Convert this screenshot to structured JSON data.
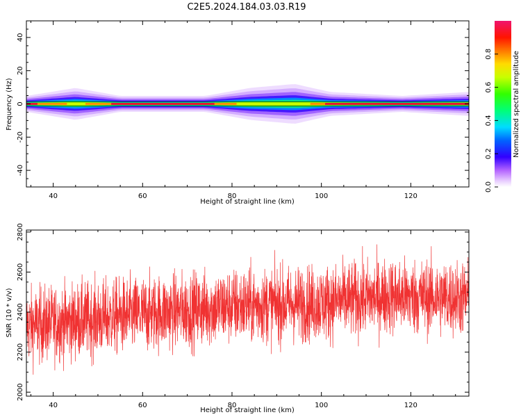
{
  "title": "C2E5.2024.184.03.03.R19",
  "chart_data": [
    {
      "type": "heatmap",
      "xlabel": "Height of straight line (km)",
      "ylabel": "Frequency (Hz)",
      "xlim": [
        34,
        133
      ],
      "ylim": [
        -50,
        50
      ],
      "xticks": [
        40,
        60,
        80,
        100,
        120
      ],
      "yticks": [
        -40,
        -20,
        0,
        20,
        40
      ],
      "colorbar": {
        "label": "Normalized spectral amplitude",
        "range": [
          0,
          1
        ],
        "ticks": [
          0.0,
          0.2,
          0.4,
          0.6,
          0.8
        ]
      },
      "spectral_band": {
        "center_hz": 0,
        "profile": [
          {
            "x": 34,
            "halfwidth_hz": 2,
            "core_level": 0.85
          },
          {
            "x": 45,
            "halfwidth_hz": 4,
            "core_level": 0.6
          },
          {
            "x": 55,
            "halfwidth_hz": 2,
            "core_level": 0.85
          },
          {
            "x": 74,
            "halfwidth_hz": 2,
            "core_level": 0.85
          },
          {
            "x": 84,
            "halfwidth_hz": 4,
            "core_level": 0.55
          },
          {
            "x": 94,
            "halfwidth_hz": 5,
            "core_level": 0.5
          },
          {
            "x": 102,
            "halfwidth_hz": 3,
            "core_level": 0.85
          },
          {
            "x": 118,
            "halfwidth_hz": 2,
            "core_level": 0.9
          },
          {
            "x": 133,
            "halfwidth_hz": 3,
            "core_level": 0.8
          }
        ]
      }
    },
    {
      "type": "line",
      "xlabel": "Height of straight line (km)",
      "ylabel": "SNR (10 * v/v)",
      "xlim": [
        34,
        133
      ],
      "ylim": [
        1980,
        2810
      ],
      "xticks": [
        40,
        60,
        80,
        100,
        120
      ],
      "yticks": [
        2000,
        2200,
        2400,
        2600,
        2800
      ],
      "color": "#f03232",
      "trend": [
        {
          "x": 34,
          "y": 2330
        },
        {
          "x": 60,
          "y": 2390
        },
        {
          "x": 80,
          "y": 2430
        },
        {
          "x": 100,
          "y": 2445
        },
        {
          "x": 115,
          "y": 2480
        },
        {
          "x": 133,
          "y": 2470
        }
      ],
      "envelope_halfwidth": 170
    }
  ]
}
